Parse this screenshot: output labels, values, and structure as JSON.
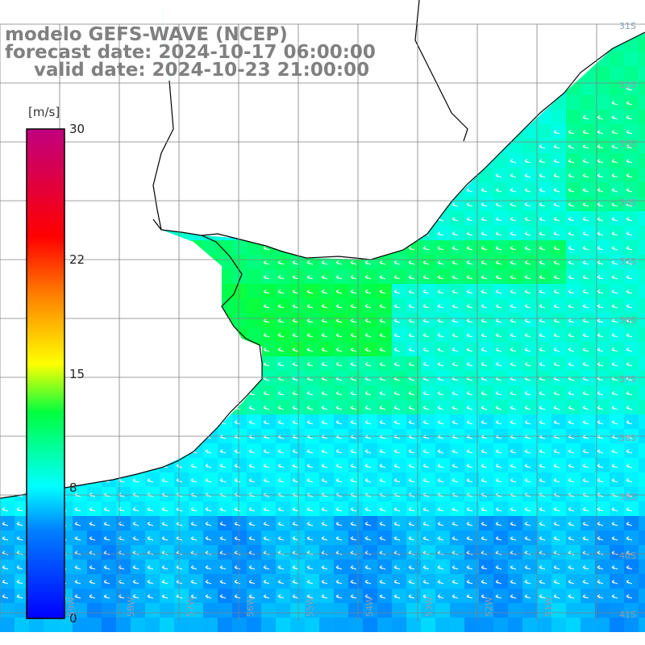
{
  "title": {
    "line1": "modelo GEFS-WAVE (NCEP)",
    "line2": "forecast date: 2024-10-17 06:00:00",
    "line3": "valid date: 2024-10-23 21:00:00"
  },
  "colorbar": {
    "unit": "[m/s]",
    "ticks": [
      {
        "label": "30",
        "value": 30
      },
      {
        "label": "22",
        "value": 22
      },
      {
        "label": "15",
        "value": 15
      },
      {
        "label": "8",
        "value": 8
      },
      {
        "label": "0",
        "value": 0
      }
    ],
    "min": 0,
    "max": 30,
    "colors": [
      "#0000ff",
      "#0080ff",
      "#00ffff",
      "#00ff40",
      "#ffff00",
      "#ff8000",
      "#ff0000",
      "#c00080"
    ]
  },
  "latitude_labels": [
    "31S",
    "32S",
    "33S",
    "34S",
    "35S",
    "36S",
    "37S",
    "38S",
    "39S",
    "40S",
    "41S"
  ],
  "longitude_labels": [
    "59W",
    "58W",
    "57W",
    "56W",
    "55W",
    "54W",
    "53W",
    "52W",
    "51W"
  ],
  "colors": {
    "land": "#ffffff",
    "coast": "#000000",
    "grid": "#808080",
    "arrow": "#ffffff"
  }
}
